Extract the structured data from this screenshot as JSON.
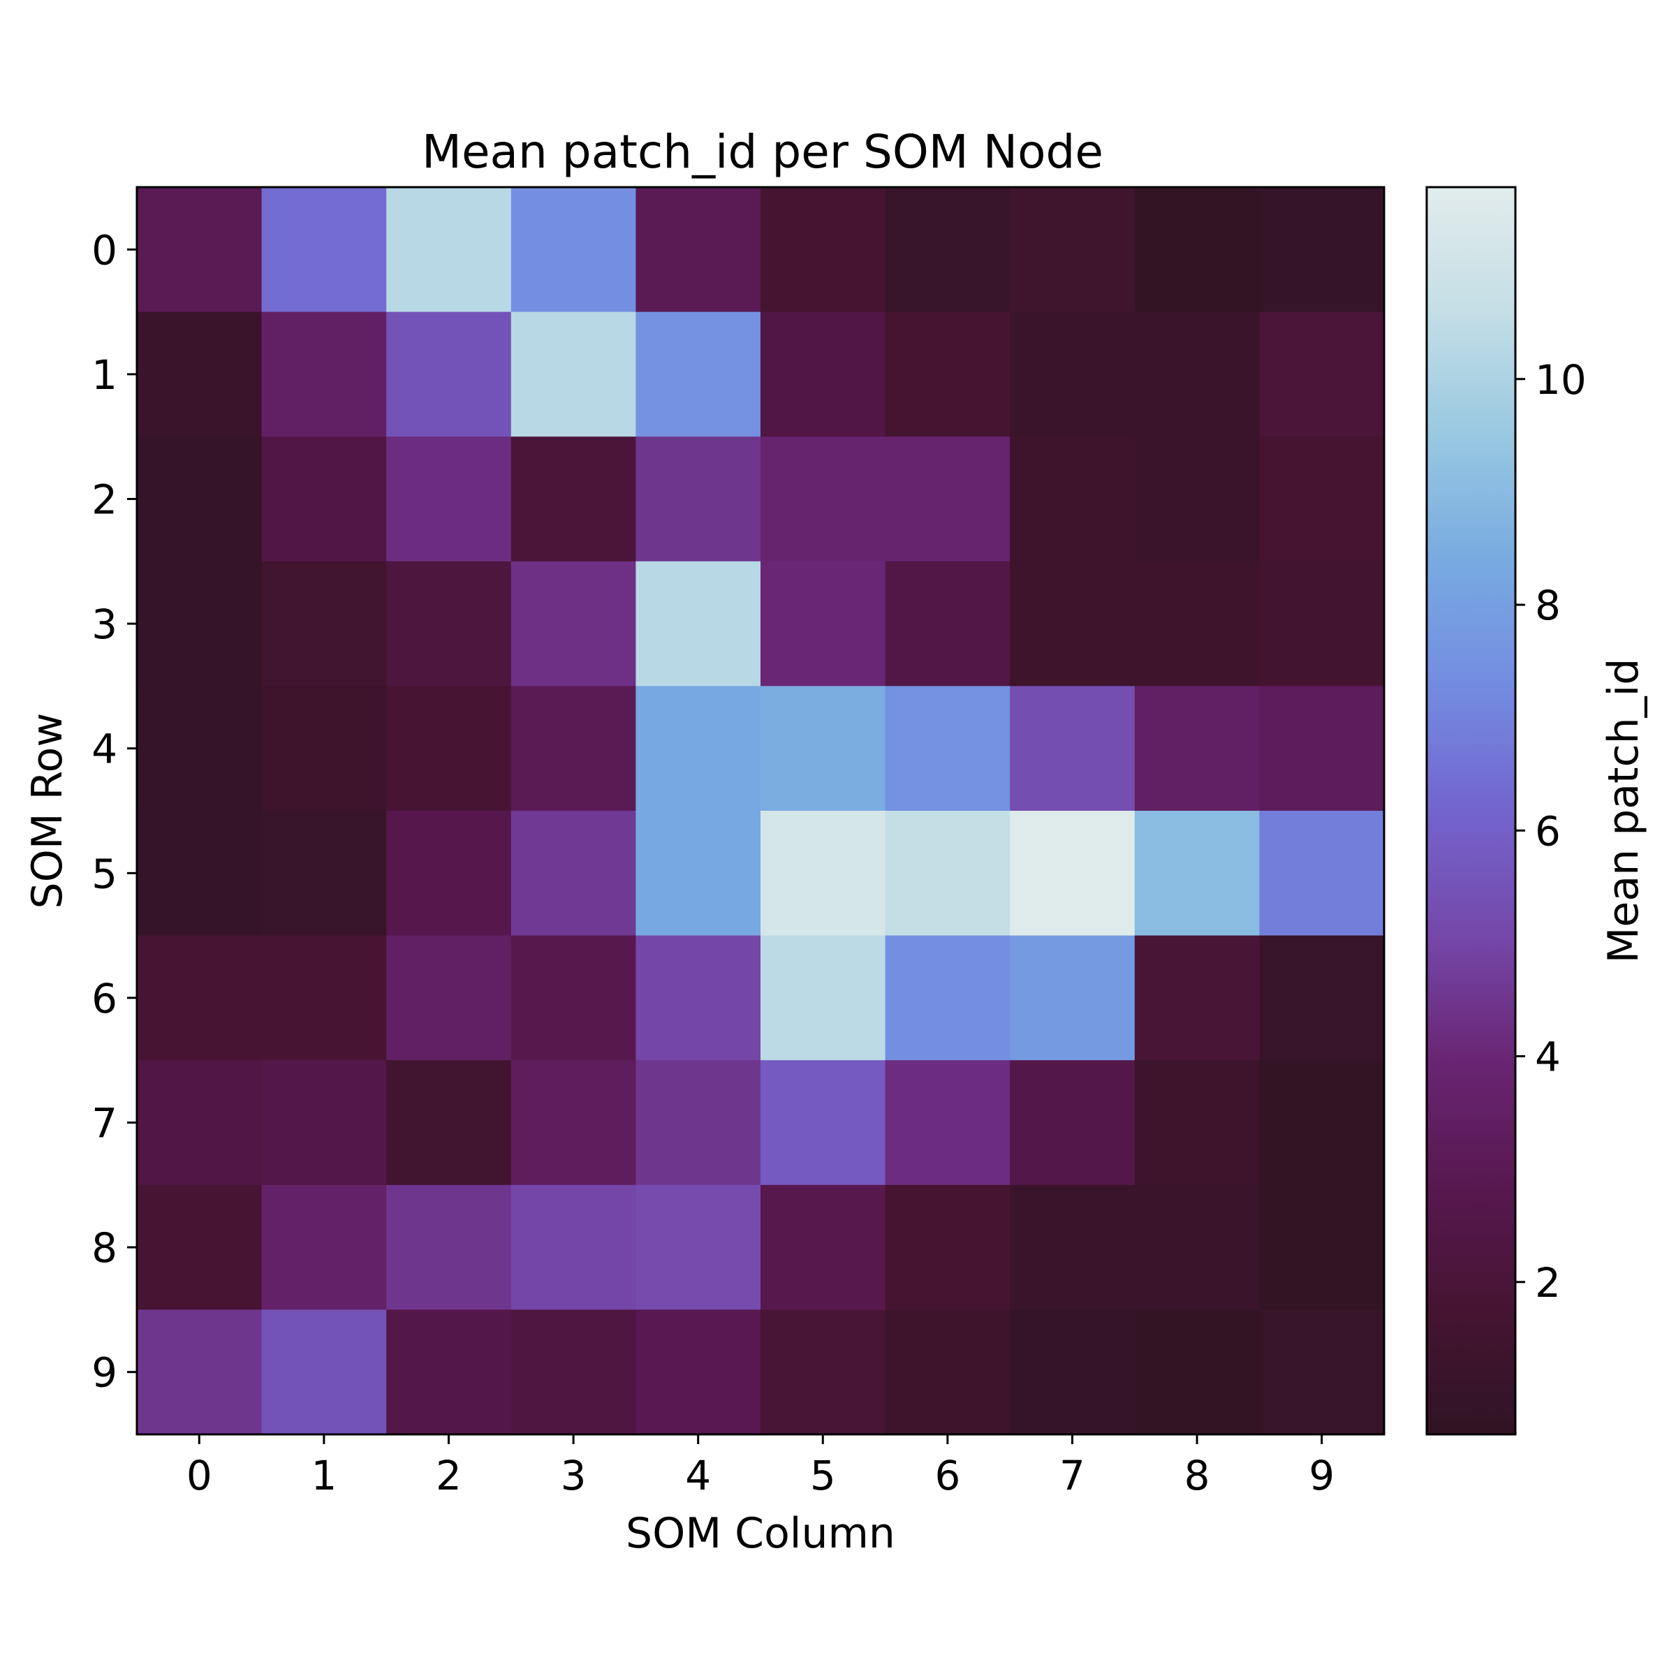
{
  "chart_data": {
    "type": "heatmap",
    "title": "Mean patch_id per SOM Node",
    "xlabel": "SOM Column",
    "ylabel": "SOM Row",
    "colorbar_label": "Mean patch_id",
    "colormap": "twilight (dark half)",
    "x_categories": [
      "0",
      "1",
      "2",
      "3",
      "4",
      "5",
      "6",
      "7",
      "8",
      "9"
    ],
    "y_categories": [
      "0",
      "1",
      "2",
      "3",
      "4",
      "5",
      "6",
      "7",
      "8",
      "9"
    ],
    "colorbar_range": [
      0.65,
      11.7
    ],
    "colorbar_ticks": [
      2,
      4,
      6,
      8,
      10
    ],
    "values": [
      [
        3.0,
        6.4,
        10.3,
        7.4,
        3.0,
        1.7,
        1.1,
        1.4,
        0.8,
        1.0
      ],
      [
        1.2,
        3.5,
        5.5,
        10.3,
        7.5,
        2.4,
        1.7,
        1.2,
        1.2,
        2.0
      ],
      [
        0.9,
        2.4,
        4.2,
        2.0,
        4.5,
        3.8,
        3.8,
        1.3,
        1.2,
        1.7
      ],
      [
        0.9,
        1.5,
        2.2,
        4.3,
        10.3,
        4.0,
        2.5,
        1.3,
        1.3,
        1.6
      ],
      [
        1.0,
        1.3,
        1.8,
        3.0,
        8.3,
        8.5,
        7.5,
        5.3,
        3.5,
        3.2
      ],
      [
        0.9,
        1.1,
        2.7,
        4.6,
        8.3,
        11.2,
        10.6,
        11.6,
        9.0,
        6.9
      ],
      [
        1.8,
        1.8,
        3.5,
        2.8,
        5.0,
        10.4,
        7.4,
        7.8,
        1.9,
        1.1
      ],
      [
        2.4,
        2.6,
        1.5,
        3.3,
        4.5,
        5.8,
        4.2,
        2.6,
        1.3,
        0.8
      ],
      [
        1.8,
        3.6,
        4.5,
        5.0,
        5.2,
        2.8,
        1.7,
        1.2,
        1.2,
        0.8
      ],
      [
        4.5,
        5.5,
        2.6,
        2.3,
        2.9,
        1.9,
        1.3,
        0.9,
        0.8,
        1.1
      ]
    ]
  }
}
